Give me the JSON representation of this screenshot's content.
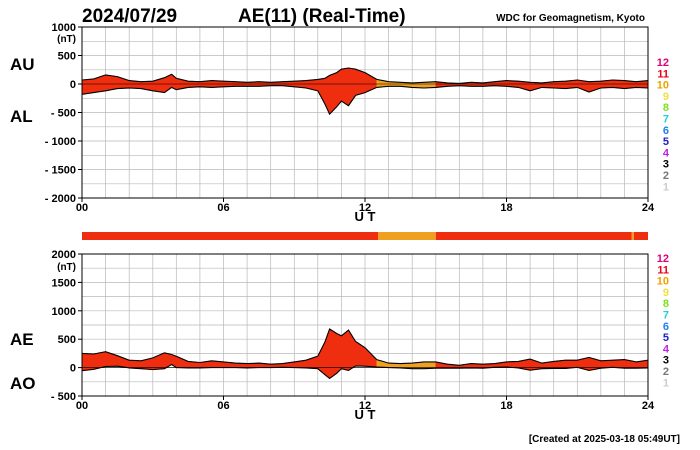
{
  "header": {
    "date": "2024/07/29",
    "title": "AE(11) (Real-Time)",
    "source": "WDC for Geomagnetism, Kyoto"
  },
  "footer": {
    "created": "[Created at 2025-03-18 05:49UT]"
  },
  "legend": {
    "items": [
      {
        "label": "12",
        "color": "#e0007a"
      },
      {
        "label": "11",
        "color": "#e8001c"
      },
      {
        "label": "10",
        "color": "#f0a000"
      },
      {
        "label": "9",
        "color": "#f0e040"
      },
      {
        "label": "8",
        "color": "#80e020"
      },
      {
        "label": "7",
        "color": "#20d0d0"
      },
      {
        "label": "6",
        "color": "#2080f0"
      },
      {
        "label": "5",
        "color": "#2020c0"
      },
      {
        "label": "4",
        "color": "#c020e0"
      },
      {
        "label": "3",
        "color": "#000000"
      },
      {
        "label": "2",
        "color": "#777777"
      },
      {
        "label": "1",
        "color": "#cccccc"
      }
    ]
  },
  "station_bar": {
    "segments": [
      {
        "start": 0,
        "end": 12.55,
        "stations": 11,
        "color": "#ee2e0f"
      },
      {
        "start": 12.55,
        "end": 15.0,
        "stations": 10,
        "color": "#f0a020"
      },
      {
        "start": 15.0,
        "end": 23.3,
        "stations": 11,
        "color": "#ee2e0f"
      },
      {
        "start": 23.3,
        "end": 23.4,
        "stations": 10,
        "color": "#f0a020"
      },
      {
        "start": 23.4,
        "end": 24,
        "stations": 11,
        "color": "#ee2e0f"
      }
    ]
  },
  "chart_data": [
    {
      "type": "area",
      "panel": "AU/AL",
      "series_labels": [
        "AU",
        "AL"
      ],
      "unit_label": "(nT)",
      "xlabel": "U T",
      "xlim": [
        0,
        24
      ],
      "xticks": [
        0,
        6,
        12,
        18,
        24
      ],
      "xtick_labels": [
        "00",
        "06",
        "12",
        "18",
        "24"
      ],
      "ylim": [
        -2000,
        1000
      ],
      "yticks": [
        1000,
        500,
        0,
        -500,
        -1000,
        -1500,
        -2000
      ],
      "ytick_labels": [
        "1000",
        "500",
        "0",
        "- 500",
        "- 1000",
        "- 1500",
        "- 2000"
      ],
      "grid": true,
      "fill_colors": {
        "11": "#ee2e0f",
        "10": "#f0a020"
      },
      "x": [
        0,
        0.5,
        1,
        1.5,
        2,
        2.5,
        3,
        3.5,
        3.8,
        4,
        4.5,
        5,
        5.5,
        6,
        6.5,
        7,
        7.5,
        8,
        8.5,
        9,
        9.5,
        10,
        10.3,
        10.5,
        10.8,
        11,
        11.3,
        11.6,
        12,
        12.5,
        13,
        13.5,
        14,
        14.5,
        15,
        15.5,
        16,
        16.5,
        17,
        17.5,
        18,
        18.5,
        19,
        19.5,
        20,
        20.5,
        21,
        21.5,
        22,
        22.5,
        23,
        23.5,
        24
      ],
      "series": [
        {
          "name": "AU",
          "values": [
            70,
            90,
            160,
            130,
            60,
            40,
            50,
            110,
            170,
            100,
            50,
            40,
            60,
            50,
            40,
            30,
            40,
            30,
            40,
            50,
            60,
            80,
            100,
            150,
            200,
            260,
            280,
            260,
            200,
            80,
            40,
            30,
            20,
            30,
            40,
            20,
            10,
            30,
            20,
            40,
            60,
            50,
            30,
            20,
            40,
            50,
            70,
            40,
            50,
            70,
            60,
            40,
            60
          ]
        },
        {
          "name": "AL",
          "values": [
            -180,
            -150,
            -120,
            -80,
            -70,
            -80,
            -120,
            -150,
            -60,
            -100,
            -60,
            -50,
            -60,
            -50,
            -40,
            -40,
            -40,
            -30,
            -30,
            -50,
            -70,
            -120,
            -350,
            -530,
            -400,
            -300,
            -380,
            -200,
            -150,
            -60,
            -40,
            -40,
            -60,
            -70,
            -60,
            -40,
            -30,
            -40,
            -40,
            -30,
            -40,
            -60,
            -120,
            -60,
            -70,
            -80,
            -60,
            -140,
            -70,
            -60,
            -80,
            -60,
            -70
          ]
        }
      ]
    },
    {
      "type": "area",
      "panel": "AE/AO",
      "series_labels": [
        "AE",
        "AO"
      ],
      "unit_label": "(nT)",
      "xlabel": "U T",
      "xlim": [
        0,
        24
      ],
      "xticks": [
        0,
        6,
        12,
        18,
        24
      ],
      "xtick_labels": [
        "00",
        "06",
        "12",
        "18",
        "24"
      ],
      "ylim": [
        -500,
        2000
      ],
      "yticks": [
        2000,
        1500,
        1000,
        500,
        0,
        -500
      ],
      "ytick_labels": [
        "2000",
        "1500",
        "1000",
        "500",
        "0",
        "- 500"
      ],
      "grid": true,
      "fill_colors": {
        "11": "#ee2e0f",
        "10": "#f0a020"
      },
      "x": [
        0,
        0.5,
        1,
        1.5,
        2,
        2.5,
        3,
        3.5,
        3.8,
        4,
        4.5,
        5,
        5.5,
        6,
        6.5,
        7,
        7.5,
        8,
        8.5,
        9,
        9.5,
        10,
        10.3,
        10.5,
        10.8,
        11,
        11.3,
        11.6,
        12,
        12.5,
        13,
        13.5,
        14,
        14.5,
        15,
        15.5,
        16,
        16.5,
        17,
        17.5,
        18,
        18.5,
        19,
        19.5,
        20,
        20.5,
        21,
        21.5,
        22,
        22.5,
        23,
        23.5,
        24
      ],
      "series": [
        {
          "name": "AE",
          "values": [
            250,
            240,
            280,
            210,
            130,
            120,
            170,
            260,
            230,
            200,
            110,
            90,
            120,
            100,
            80,
            70,
            80,
            60,
            70,
            100,
            130,
            200,
            450,
            680,
            600,
            560,
            660,
            460,
            350,
            140,
            80,
            70,
            80,
            100,
            100,
            60,
            40,
            70,
            60,
            70,
            100,
            110,
            150,
            80,
            110,
            130,
            130,
            180,
            120,
            130,
            140,
            100,
            130
          ]
        },
        {
          "name": "AO",
          "values": [
            -55,
            -30,
            20,
            25,
            -5,
            -20,
            -35,
            -20,
            55,
            0,
            -5,
            -5,
            0,
            0,
            0,
            -5,
            0,
            0,
            5,
            0,
            -5,
            -20,
            -125,
            -190,
            -100,
            -20,
            -50,
            30,
            25,
            10,
            0,
            -5,
            -20,
            -20,
            -10,
            -10,
            -10,
            -5,
            -10,
            5,
            10,
            -5,
            -45,
            -20,
            -15,
            -15,
            5,
            -50,
            -10,
            5,
            -10,
            -10,
            -5
          ]
        }
      ]
    }
  ]
}
